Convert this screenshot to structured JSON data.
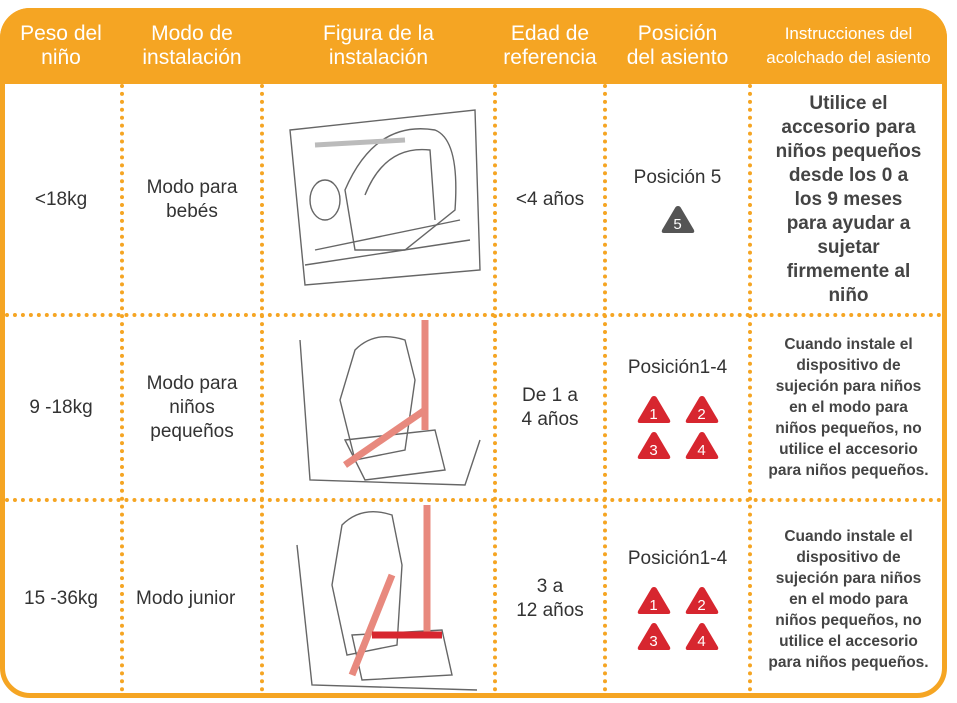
{
  "header": [
    [
      "Peso del",
      "niño"
    ],
    [
      "Modo de",
      "instalación"
    ],
    [
      "Figura de la",
      "instalación"
    ],
    [
      "Edad de",
      "referencia"
    ],
    [
      "Posición",
      "del asiento"
    ],
    [
      "Instrucciones del",
      "acolchado del asiento"
    ]
  ],
  "rows": [
    {
      "weight": "<18kg",
      "mode": [
        "Modo para",
        "bebés"
      ],
      "age": [
        "<4 años"
      ],
      "position": "Posición 5",
      "badges": [
        "5"
      ],
      "badge_color": "#555555",
      "instructions": [
        "Utilice el",
        "accesorio para",
        "niños pequeños",
        "desde los 0 a",
        "los 9 meses",
        "para ayudar a",
        "sujetar",
        "firmemente al",
        "niño"
      ]
    },
    {
      "weight": "9 -18kg",
      "mode": [
        "Modo para",
        "niños",
        "pequeños"
      ],
      "age": [
        "De 1 a",
        "4 años"
      ],
      "position": "Posición1-4",
      "badges": [
        "1",
        "2",
        "3",
        "4"
      ],
      "badge_color": "#d7262f",
      "instructions": [
        "Cuando instale el",
        "dispositivo de",
        "sujeción para niños",
        "en el modo para",
        "niños pequeños, no",
        "utilice el accesorio",
        "para niños pequeños."
      ]
    },
    {
      "weight": "15 -36kg",
      "mode": [
        "Modo junior"
      ],
      "age": [
        "3 a",
        "12 años"
      ],
      "position": "Posición1-4",
      "badges": [
        "1",
        "2",
        "3",
        "4"
      ],
      "badge_color": "#d7262f",
      "instructions": [
        "Cuando instale el",
        "dispositivo de",
        "sujeción para niños",
        "en el modo para",
        "niños pequeños, no",
        "utilice el accesorio",
        "para niños pequeños."
      ]
    }
  ]
}
